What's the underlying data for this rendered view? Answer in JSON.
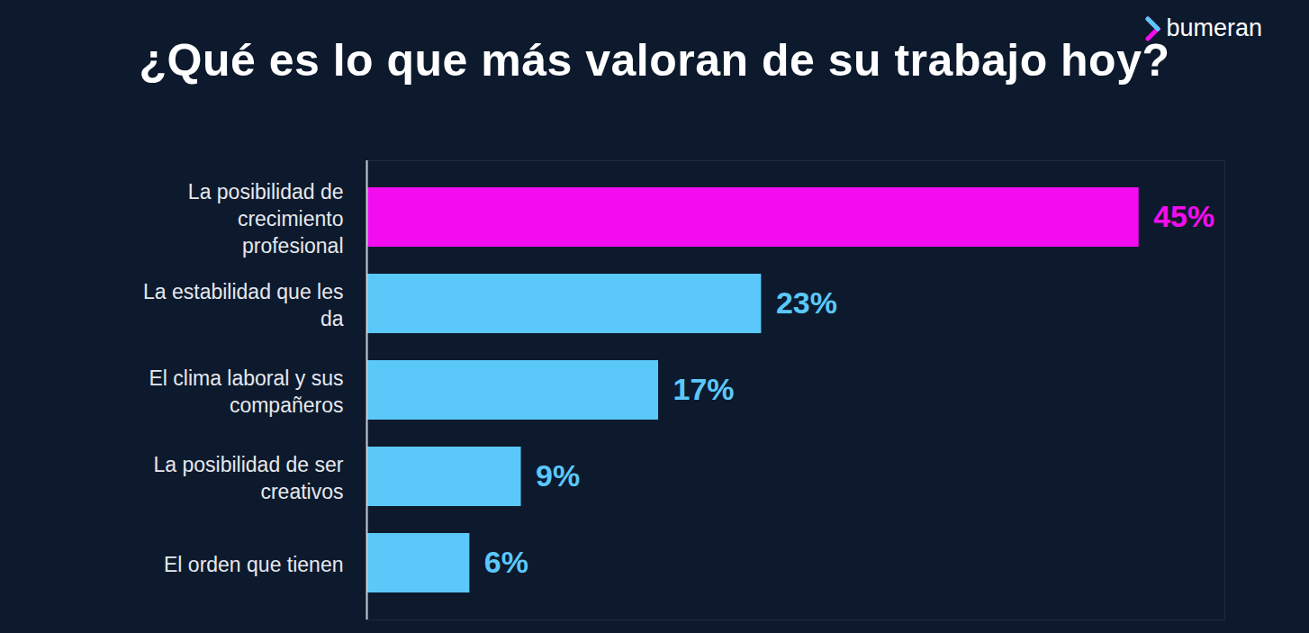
{
  "chart_data": {
    "type": "bar",
    "orientation": "horizontal",
    "title": "¿Qué es lo que más valoran de su trabajo hoy?",
    "source": "bumeran",
    "categories": [
      "La posibilidad de crecimiento profesional",
      "La estabilidad que les da",
      "El clima laboral y sus compañeros",
      "La posibilidad de ser creativos",
      "El orden que tienen"
    ],
    "values": [
      45,
      23,
      17,
      9,
      6
    ],
    "value_labels": [
      "45%",
      "23%",
      "17%",
      "9%",
      "6%"
    ],
    "colors": [
      "#f20cef",
      "#5bc8fa",
      "#5bc8fa",
      "#5bc8fa",
      "#5bc8fa"
    ],
    "xlim": [
      0,
      50
    ],
    "xticks": [],
    "data_labels": true,
    "tick_labels": "y",
    "grid": false
  }
}
